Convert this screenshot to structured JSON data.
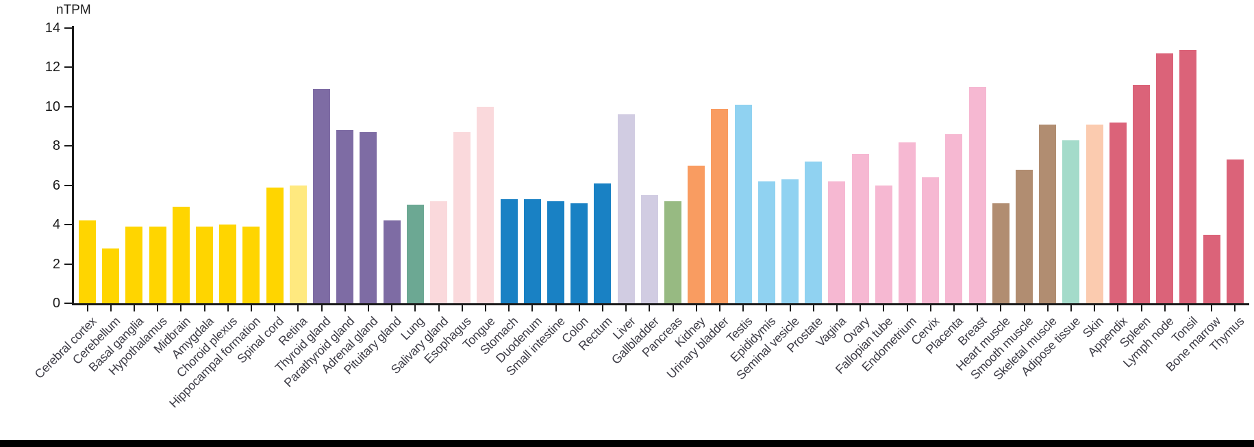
{
  "chart_data": {
    "type": "bar",
    "title": "",
    "ylabel": "nTPM",
    "xlabel": "",
    "ylim": [
      0,
      14
    ],
    "yticks": [
      0,
      2,
      4,
      6,
      8,
      10,
      12,
      14
    ],
    "grid": false,
    "legend_position": "none",
    "x_label_rotation_deg": 45,
    "axis_color": "#1a1a1a",
    "x_label_color": "#3d3c46",
    "categories": [
      "Cerebral cortex",
      "Cerebellum",
      "Basal ganglia",
      "Hypothalamus",
      "Midbrain",
      "Amygdala",
      "Choroid plexus",
      "Hippocampal formation",
      "Spinal cord",
      "Retina",
      "Thyroid gland",
      "Parathyroid gland",
      "Adrenal gland",
      "Pituitary gland",
      "Lung",
      "Salivary gland",
      "Esophagus",
      "Tongue",
      "Stomach",
      "Duodenum",
      "Small intestine",
      "Colon",
      "Rectum",
      "Liver",
      "Gallbladder",
      "Pancreas",
      "Kidney",
      "Urinary bladder",
      "Testis",
      "Epididymis",
      "Seminal vesicle",
      "Prostate",
      "Vagina",
      "Ovary",
      "Fallopian tube",
      "Endometrium",
      "Cervix",
      "Placenta",
      "Breast",
      "Heart muscle",
      "Smooth muscle",
      "Skeletal muscle",
      "Adipose tissue",
      "Skin",
      "Appendix",
      "Spleen",
      "Lymph node",
      "Tonsil",
      "Bone marrow",
      "Thymus"
    ],
    "values": [
      4.2,
      2.8,
      3.9,
      3.9,
      4.9,
      3.9,
      4.0,
      3.9,
      5.9,
      6.0,
      10.9,
      8.8,
      8.7,
      4.2,
      5.0,
      5.2,
      8.7,
      10.0,
      5.3,
      5.3,
      5.2,
      5.1,
      6.1,
      9.6,
      5.5,
      5.2,
      7.0,
      9.9,
      10.1,
      6.2,
      6.3,
      7.2,
      6.2,
      7.6,
      6.0,
      8.2,
      6.4,
      8.6,
      11.0,
      5.1,
      6.8,
      9.1,
      8.3,
      9.1,
      9.2,
      11.1,
      12.7,
      12.9,
      3.5,
      7.3
    ],
    "colors": [
      "#FFD500",
      "#FFD500",
      "#FFD500",
      "#FFD500",
      "#FFD500",
      "#FFD500",
      "#FFD500",
      "#FFD500",
      "#FFD500",
      "#FFE97F",
      "#7E6CA4",
      "#7E6CA4",
      "#7E6CA4",
      "#7E6CA4",
      "#6CA893",
      "#FAD9DC",
      "#FAD9DC",
      "#FAD9DC",
      "#1981C4",
      "#1981C4",
      "#1981C4",
      "#1981C4",
      "#1981C4",
      "#D1CCE2",
      "#D1CCE2",
      "#97BA82",
      "#F99C61",
      "#F99C61",
      "#90D2F1",
      "#90D2F1",
      "#90D2F1",
      "#90D2F1",
      "#F6B8D2",
      "#F6B8D2",
      "#F6B8D2",
      "#F6B8D2",
      "#F6B8D2",
      "#F6B8D2",
      "#F6B8D2",
      "#B18D71",
      "#B18D71",
      "#B18D71",
      "#A4DBCA",
      "#FBCBAF",
      "#DB6379",
      "#DB6379",
      "#DB6379",
      "#DB6379",
      "#DB6379",
      "#DB6379"
    ]
  },
  "footer": {
    "divider_color": "#000000"
  }
}
